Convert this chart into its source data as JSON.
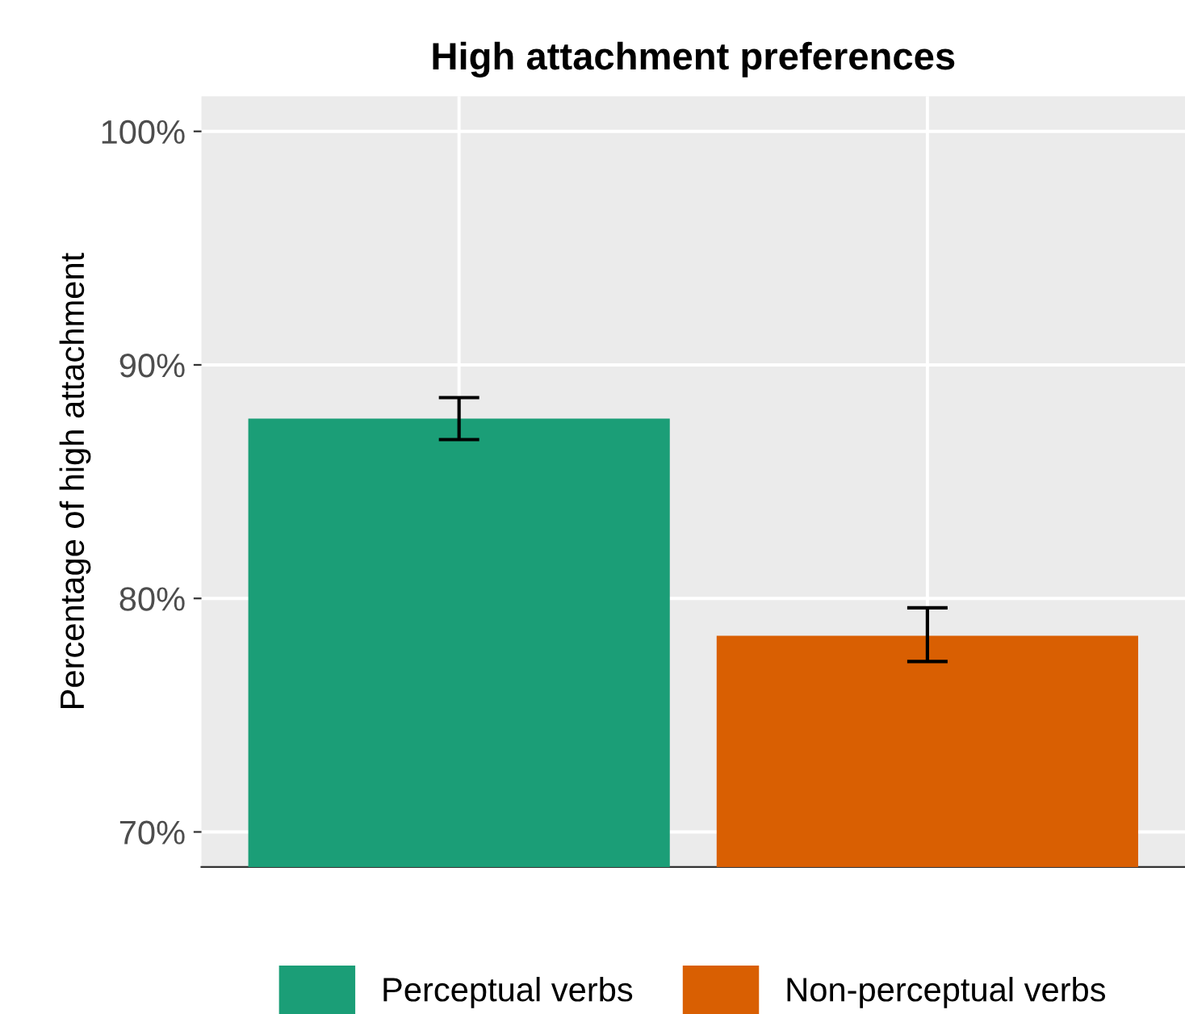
{
  "chart_data": {
    "type": "bar",
    "title": "High attachment preferences",
    "ylabel": "Percentage of high attachment",
    "categories": [
      null,
      null
    ],
    "series": [
      {
        "name": "Perceptual verbs",
        "color": "#1b9e77",
        "values": [
          87.7,
          null
        ],
        "errors": [
          [
            86.8,
            88.6
          ],
          null
        ]
      },
      {
        "name": "Non-perceptual verbs",
        "color": "#d95f02",
        "values": [
          null,
          78.4
        ],
        "errors": [
          null,
          [
            77.3,
            79.6
          ]
        ]
      }
    ],
    "ylim": [
      68.5,
      101.5
    ],
    "yticks": [
      {
        "value": 70,
        "label": "70%"
      },
      {
        "value": 80,
        "label": "80%"
      },
      {
        "value": 90,
        "label": "90%"
      },
      {
        "value": 100,
        "label": "100%"
      }
    ],
    "grid": true,
    "legend": "bottom"
  }
}
